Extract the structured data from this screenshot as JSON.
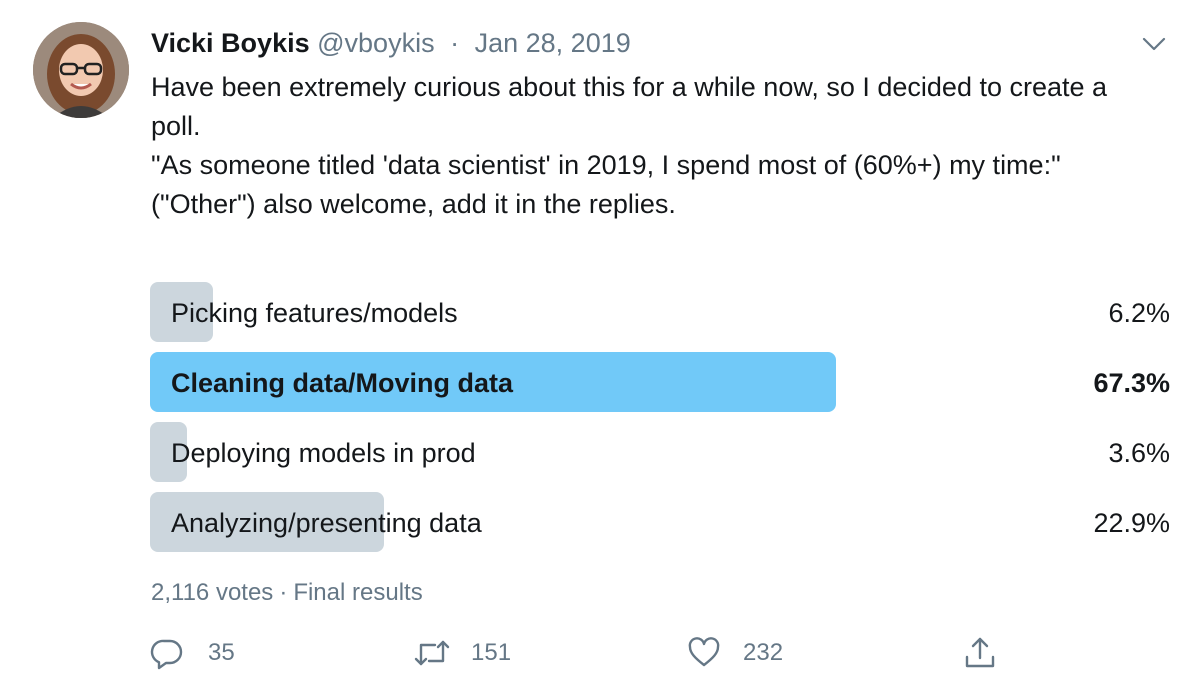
{
  "tweet": {
    "author": {
      "display_name": "Vicki Boykis",
      "handle": "@vboykis"
    },
    "separator": "·",
    "date": "Jan 28, 2019",
    "text_lines": [
      "Have been extremely curious about this for a while now, so I decided to create a poll.",
      "\"As someone titled 'data scientist' in 2019, I spend most of (60%+)  my time:\"",
      "(\"Other\") also welcome, add it in the replies."
    ],
    "menu_icon": "chevron-down-icon"
  },
  "poll": {
    "options": [
      {
        "label": "Picking features/models",
        "percent_text": "6.2%",
        "percent": 6.2,
        "winner": false
      },
      {
        "label": "Cleaning data/Moving data",
        "percent_text": "67.3%",
        "percent": 67.3,
        "winner": true
      },
      {
        "label": "Deploying models in prod",
        "percent_text": "3.6%",
        "percent": 3.6,
        "winner": false
      },
      {
        "label": "Analyzing/presenting data",
        "percent_text": "22.9%",
        "percent": 22.9,
        "winner": false
      }
    ],
    "votes": "2,116 votes",
    "separator": "·",
    "status": "Final results"
  },
  "actions": {
    "reply": {
      "icon": "reply-icon",
      "count": "35"
    },
    "retweet": {
      "icon": "retweet-icon",
      "count": "151"
    },
    "like": {
      "icon": "heart-icon",
      "count": "232"
    },
    "share": {
      "icon": "share-icon"
    }
  },
  "colors": {
    "text": "#14171a",
    "secondary": "#657786",
    "poll_bar": "#ccd6dd",
    "poll_winner": "#71c9f8"
  }
}
